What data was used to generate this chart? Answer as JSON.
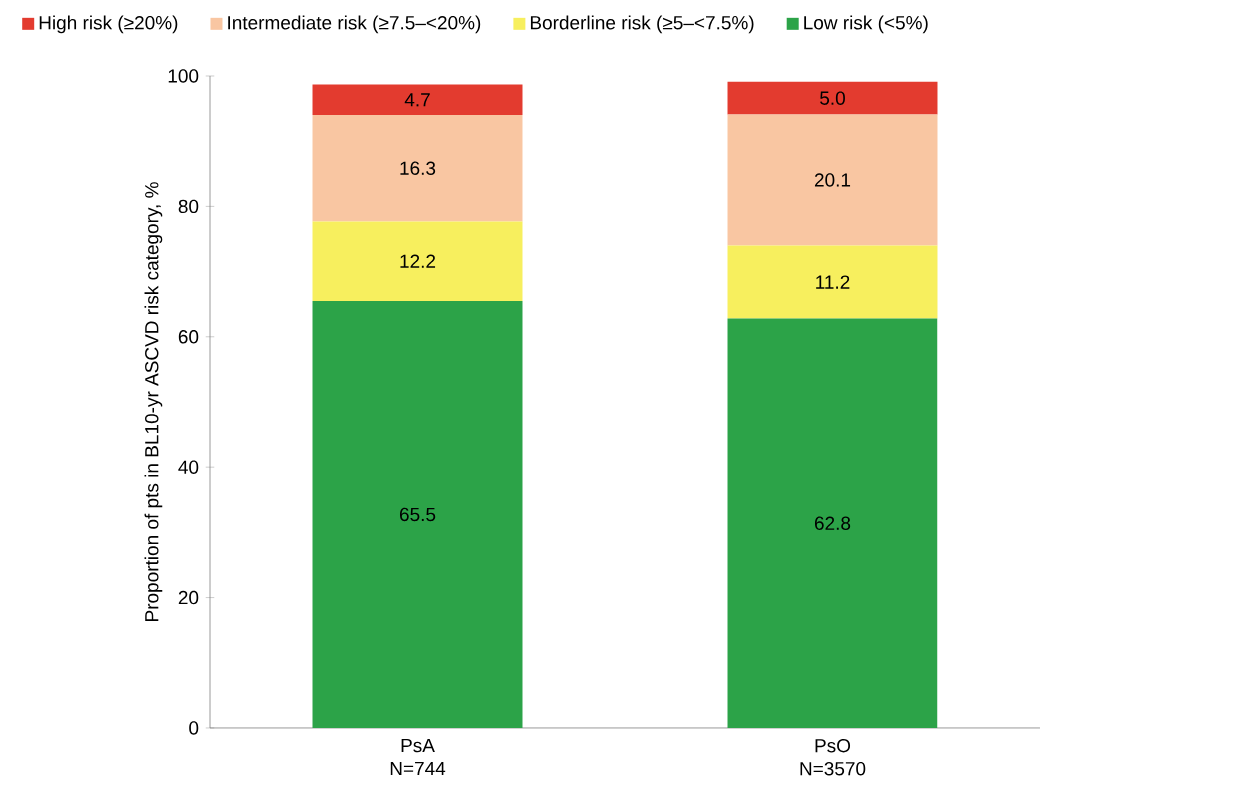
{
  "chart_data": {
    "type": "bar",
    "stacked": true,
    "ylabel": "Proportion of pts in BL10-yr ASCVD risk category, %",
    "categories": [
      "PsA N=744",
      "PsO N=3570"
    ],
    "series": [
      {
        "name": "Low risk (<5%)",
        "color": "#2ca348",
        "values": [
          65.5,
          62.8
        ],
        "value_labels": [
          "65.5",
          "62.8"
        ]
      },
      {
        "name": "Borderline risk (≥5–<7.5%)",
        "color": "#f7ef5e",
        "values": [
          12.2,
          11.2
        ],
        "value_labels": [
          "12.2",
          "11.2"
        ]
      },
      {
        "name": "Intermediate risk (≥7.5–<20%)",
        "color": "#f9c6a2",
        "values": [
          16.3,
          20.1
        ],
        "value_labels": [
          "16.3",
          "20.1"
        ]
      },
      {
        "name": "High risk (≥20%)",
        "color": "#e33b2f",
        "values": [
          4.7,
          5.0
        ],
        "value_labels": [
          "4.7",
          "5.0"
        ]
      }
    ],
    "ylim": [
      0,
      100
    ],
    "yticks": [
      0,
      20,
      40,
      60,
      80,
      100
    ],
    "legend": "top",
    "grid": false
  }
}
